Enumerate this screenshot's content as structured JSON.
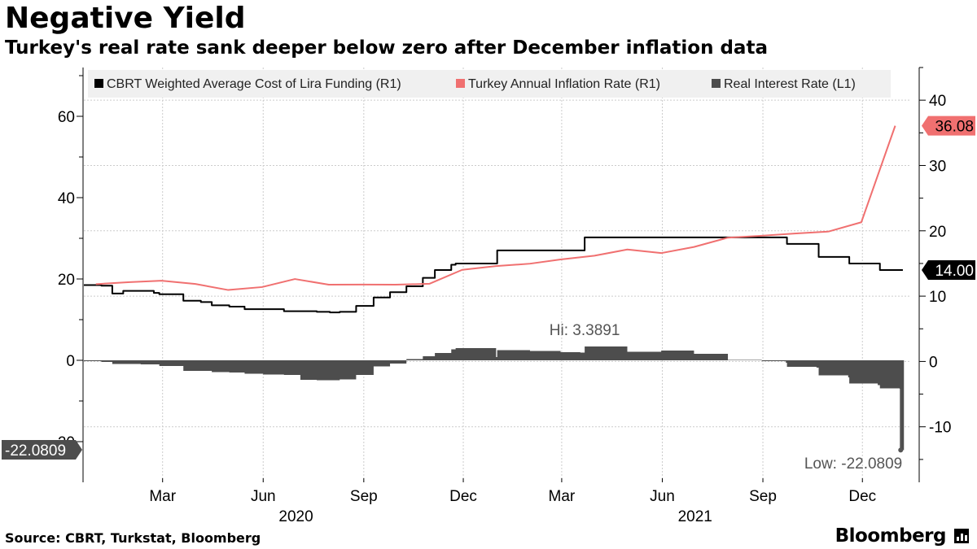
{
  "header": {
    "title": "Negative Yield",
    "subtitle": "Turkey's real rate sank deeper below zero after December inflation data"
  },
  "footer": {
    "source": "Source: CBRT, Turkstat, Bloomberg",
    "brand": "Bloomberg"
  },
  "colors": {
    "funding": "#000000",
    "inflation": "#f07070",
    "real_rate": "#4d4d4d",
    "grid": "#cccccc",
    "legend_bg": "#f0f0f0"
  },
  "chart_data": {
    "type": "line",
    "x_axis": {
      "ticks": [
        "Mar",
        "Jun",
        "Sep",
        "Dec",
        "Mar",
        "Jun",
        "Sep",
        "Dec"
      ],
      "tick_dates": [
        "2020-03-01",
        "2020-06-01",
        "2020-09-01",
        "2020-12-01",
        "2021-03-01",
        "2021-06-01",
        "2021-09-01",
        "2021-12-01"
      ],
      "years": [
        "2020",
        "2021"
      ],
      "year_dates": [
        "2020-07-01",
        "2021-07-01"
      ],
      "range": [
        "2019-12-20",
        "2022-01-13"
      ]
    },
    "y_left": {
      "label": "L1",
      "range": [
        -30,
        72
      ],
      "ticks": [
        "60",
        "40",
        "20",
        "0",
        "-20"
      ],
      "tick_values": [
        60,
        40,
        20,
        0,
        -20
      ]
    },
    "y_right": {
      "label": "R1",
      "range": [
        -18.5,
        45
      ],
      "ticks": [
        "40",
        "30",
        "20",
        "10",
        "0",
        "-10"
      ],
      "tick_values": [
        40,
        30,
        20,
        10,
        0,
        -10
      ]
    },
    "grid": true,
    "legend_placement": "top",
    "legend": [
      {
        "label": "CBRT Weighted Average Cost of Lira Funding (R1)",
        "color": "#000000"
      },
      {
        "label": "Turkey Annual Inflation Rate (R1)",
        "color": "#f07070"
      },
      {
        "label": "Real Interest Rate (L1)",
        "color": "#4d4d4d"
      }
    ],
    "series": [
      {
        "name": "CBRT Weighted Average Cost of Lira Funding (R1)",
        "axis": "right",
        "type": "line",
        "x": [
          "2019-12-20",
          "2020-01-05",
          "2020-01-15",
          "2020-01-25",
          "2020-02-10",
          "2020-02-22",
          "2020-02-27",
          "2020-03-20",
          "2020-04-05",
          "2020-04-15",
          "2020-05-01",
          "2020-05-15",
          "2020-06-01",
          "2020-06-20",
          "2020-07-05",
          "2020-07-20",
          "2020-08-01",
          "2020-08-10",
          "2020-08-25",
          "2020-09-10",
          "2020-09-25",
          "2020-10-10",
          "2020-10-25",
          "2020-11-05",
          "2020-11-20",
          "2020-11-24",
          "2020-12-31",
          "2021-01-01",
          "2021-03-18",
          "2021-03-22",
          "2021-06-30",
          "2021-07-14",
          "2021-09-22",
          "2021-09-23",
          "2021-10-20",
          "2021-10-22",
          "2021-11-18",
          "2021-11-19",
          "2021-12-15",
          "2021-12-17",
          "2022-01-07"
        ],
        "y": [
          11.7,
          11.6,
          10.4,
          10.8,
          10.8,
          10.5,
          10.3,
          9.3,
          9.1,
          8.6,
          8.4,
          8.0,
          8.0,
          7.7,
          7.7,
          7.6,
          7.5,
          7.6,
          8.5,
          9.8,
          10.6,
          11.5,
          12.8,
          14.0,
          14.8,
          15.0,
          15.0,
          17.0,
          17.0,
          19.0,
          19.0,
          19.0,
          19.0,
          18.0,
          18.0,
          16.0,
          16.0,
          15.0,
          15.0,
          14.0,
          14.0
        ]
      },
      {
        "name": "Turkey Annual Inflation Rate (R1)",
        "axis": "right",
        "type": "line",
        "x": [
          "2019-12-31",
          "2020-01-31",
          "2020-02-29",
          "2020-03-31",
          "2020-04-30",
          "2020-05-31",
          "2020-06-30",
          "2020-07-31",
          "2020-08-31",
          "2020-09-30",
          "2020-10-31",
          "2020-11-30",
          "2020-12-31",
          "2021-01-31",
          "2021-02-28",
          "2021-03-31",
          "2021-04-30",
          "2021-05-31",
          "2021-06-30",
          "2021-07-31",
          "2021-08-31",
          "2021-09-30",
          "2021-10-31",
          "2021-11-30",
          "2021-12-31"
        ],
        "y": [
          11.84,
          12.15,
          12.37,
          11.86,
          10.94,
          11.39,
          12.62,
          11.76,
          11.77,
          11.75,
          11.89,
          14.03,
          14.6,
          14.97,
          15.61,
          16.19,
          17.14,
          16.59,
          17.53,
          18.95,
          19.25,
          19.58,
          19.89,
          21.31,
          36.08
        ]
      },
      {
        "name": "Real Interest Rate (L1)",
        "axis": "left",
        "type": "area",
        "x": [
          "2019-12-20",
          "2020-01-05",
          "2020-01-15",
          "2020-02-10",
          "2020-02-27",
          "2020-03-20",
          "2020-04-05",
          "2020-04-15",
          "2020-05-01",
          "2020-05-15",
          "2020-06-01",
          "2020-06-20",
          "2020-07-05",
          "2020-07-20",
          "2020-08-01",
          "2020-08-10",
          "2020-08-25",
          "2020-09-10",
          "2020-09-25",
          "2020-10-10",
          "2020-10-25",
          "2020-11-05",
          "2020-11-20",
          "2020-11-24",
          "2020-12-31",
          "2021-01-01",
          "2021-01-31",
          "2021-02-28",
          "2021-03-18",
          "2021-03-22",
          "2021-04-30",
          "2021-05-31",
          "2021-06-30",
          "2021-07-14",
          "2021-07-31",
          "2021-08-31",
          "2021-09-22",
          "2021-09-23",
          "2021-10-20",
          "2021-10-22",
          "2021-11-18",
          "2021-11-19",
          "2021-12-15",
          "2021-12-17",
          "2022-01-04",
          "2022-01-05"
        ],
        "y": [
          -0.2,
          -0.4,
          -0.9,
          -1.0,
          -1.4,
          -2.6,
          -2.6,
          -2.9,
          -3.0,
          -3.3,
          -3.5,
          -3.6,
          -4.8,
          -4.9,
          -4.9,
          -4.7,
          -3.6,
          -1.5,
          -0.8,
          0.3,
          1.0,
          1.8,
          2.7,
          3.0,
          0.8,
          2.5,
          2.3,
          2.0,
          1.9,
          3.39,
          2.1,
          2.4,
          1.6,
          1.6,
          0.1,
          -0.2,
          -0.6,
          -1.6,
          -1.8,
          -3.7,
          -4.2,
          -5.7,
          -6.1,
          -6.9,
          -7.0,
          -22.0809
        ]
      }
    ],
    "annotations": [
      {
        "text": "Hi: 3.3891",
        "x": "2021-03-22",
        "y": 3.3891,
        "axis": "left"
      },
      {
        "text": "Low: -22.0809",
        "x": "2022-01-05",
        "y": -22.0809,
        "axis": "left"
      }
    ],
    "value_tags": [
      {
        "text": "36.08",
        "series": "Turkey Annual Inflation Rate (R1)",
        "y": 36.08,
        "axis": "right",
        "color": "#f07070",
        "side": "right"
      },
      {
        "text": "14.00",
        "series": "CBRT Weighted Average Cost of Lira Funding (R1)",
        "y": 14.0,
        "axis": "right",
        "color": "#000000",
        "side": "right"
      },
      {
        "text": "-22.0809",
        "series": "Real Interest Rate (L1)",
        "y": -22.0809,
        "axis": "left",
        "color": "#4d4d4d",
        "side": "left"
      }
    ]
  }
}
